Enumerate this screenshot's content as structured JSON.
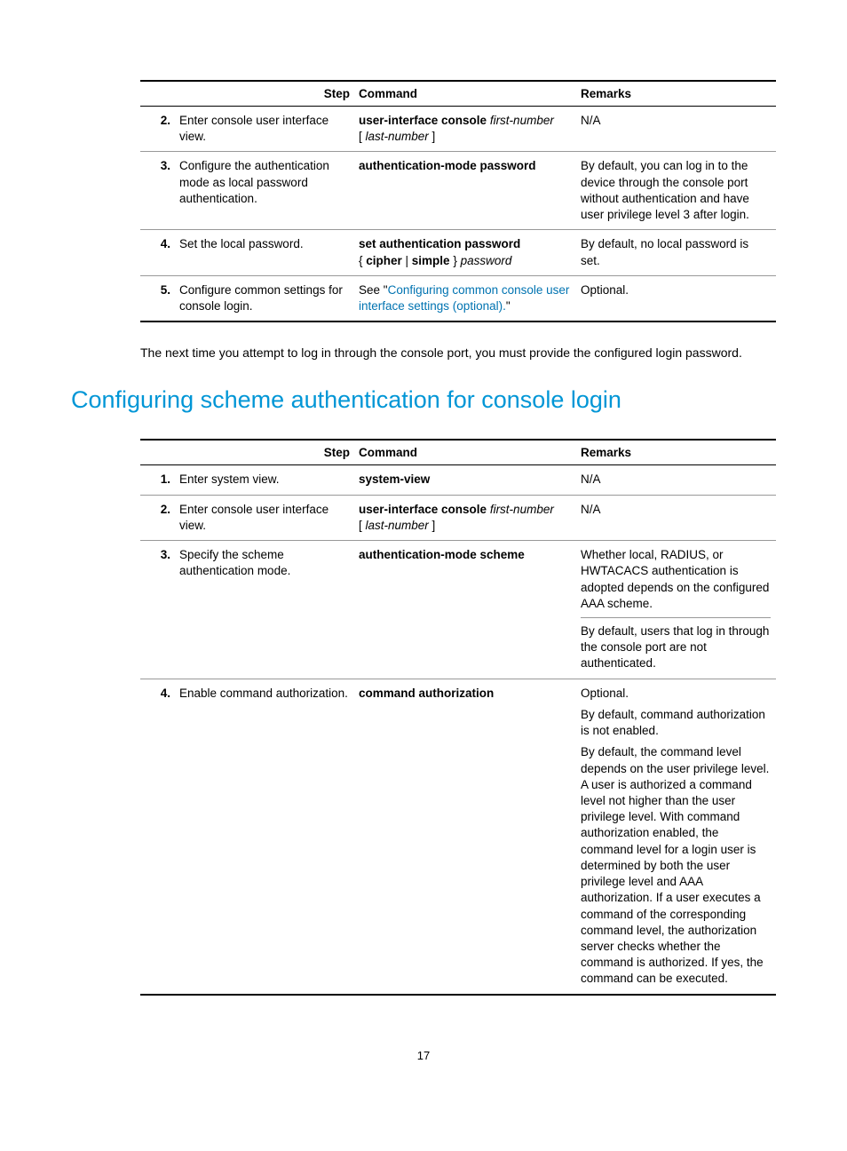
{
  "table1": {
    "headers": [
      "Step",
      "Command",
      "Remarks"
    ],
    "rows": [
      {
        "num": "2.",
        "step": "Enter console user interface view.",
        "cmd_bold1": "user-interface console",
        "cmd_ital1": " first-number",
        "cmd_plain1": "[ ",
        "cmd_ital2": "last-number",
        "cmd_plain2": " ]",
        "remarks": "N/A"
      },
      {
        "num": "3.",
        "step": "Configure the authentication mode as local password authentication.",
        "cmd_bold1": "authentication-mode password",
        "remarks": "By default, you can log in to the device through the console port without authentication and have user privilege level 3 after login."
      },
      {
        "num": "4.",
        "step": "Set the local password.",
        "cmd_bold1": "set authentication password",
        "cmd_line2_pre": "{ ",
        "cmd_line2_b1": "cipher",
        "cmd_line2_mid": " | ",
        "cmd_line2_b2": "simple",
        "cmd_line2_post": " } ",
        "cmd_line2_ital": "password",
        "remarks": "By default, no local password is set."
      },
      {
        "num": "5.",
        "step": "Configure common settings for console login.",
        "cmd_pre": "See \"",
        "cmd_link": "Configuring common console user interface settings (optional).",
        "cmd_post": "\"",
        "remarks": "Optional."
      }
    ]
  },
  "paragraph1": "The next time you attempt to log in through the console port, you must provide the configured login password.",
  "section_heading": "Configuring scheme authentication for console login",
  "table2": {
    "headers": [
      "Step",
      "Command",
      "Remarks"
    ],
    "rows": [
      {
        "num": "1.",
        "step": "Enter system view.",
        "cmd_bold1": "system-view",
        "remarks": "N/A"
      },
      {
        "num": "2.",
        "step": "Enter console user interface view.",
        "cmd_bold1": "user-interface console",
        "cmd_ital1": " first-number",
        "cmd_plain1": "[ ",
        "cmd_ital2": "last-number",
        "cmd_plain2": " ]",
        "remarks": "N/A"
      },
      {
        "num": "3.",
        "step": "Specify the scheme authentication mode.",
        "cmd_bold1": "authentication-mode scheme",
        "remarks_p1": "Whether local, RADIUS, or HWTACACS authentication is adopted depends on the configured AAA scheme.",
        "remarks_p2": "By default, users that log in through the console port are not authenticated."
      },
      {
        "num": "4.",
        "step": "Enable command authorization.",
        "cmd_bold1": "command authorization",
        "remarks_p1": "Optional.",
        "remarks_p2": "By default, command authorization is not enabled.",
        "remarks_p3": "By default, the command level depends on the user privilege level. A user is authorized a command level not higher than the user privilege level. With command authorization enabled, the command level for a login user is determined by both the user privilege level and AAA authorization. If a user executes a command of the corresponding command level, the authorization server checks whether the command is authorized. If yes, the command can be executed."
      }
    ]
  },
  "page_number": "17"
}
